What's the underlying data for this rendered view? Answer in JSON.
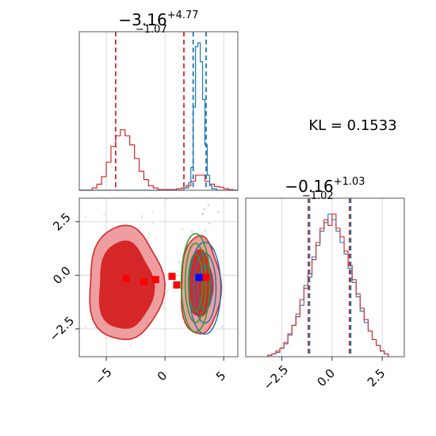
{
  "kl_label": "KL = 0.1533",
  "colors": {
    "red": "#d62728",
    "red_fill_light": "#ee9ea0",
    "red_fill_dark": "#d62728",
    "blue": "#1f77b4",
    "green": "#2ca02c",
    "marker_red": "#ff0000",
    "marker_blue": "#0000ff"
  },
  "chart_data": [
    {
      "panel": "top-left",
      "type": "histogram",
      "title": {
        "median": "−3.16",
        "plus": "+4.77",
        "minus": "−1.07"
      },
      "xlim": [
        -7.3,
        6.2
      ],
      "grid": true,
      "series": [
        {
          "color": "red",
          "bins": [
            -6.2,
            -5.8,
            -5.4,
            -5.0,
            -4.6,
            -4.2,
            -3.8,
            -3.4,
            -3.0,
            -2.6,
            -2.2,
            -1.8,
            -1.4,
            -1.0,
            -0.6,
            -0.2,
            0.2,
            0.6,
            1.0,
            1.4,
            1.8,
            2.2,
            2.6,
            3.0,
            3.4,
            3.8,
            4.2,
            4.6,
            5.0,
            5.4
          ],
          "counts": [
            3,
            8,
            18,
            37,
            58,
            72,
            80,
            72,
            60,
            42,
            25,
            14,
            6,
            3,
            1,
            1,
            1,
            1,
            2,
            3,
            6,
            12,
            20,
            20,
            12,
            8,
            5,
            4,
            2,
            1
          ]
        },
        {
          "color": "blue",
          "bins": [
            1.6,
            2.0,
            2.2,
            2.4,
            2.6,
            2.8,
            3.0,
            3.2,
            3.4,
            3.6,
            3.8,
            4.0
          ],
          "counts": [
            3,
            10,
            30,
            110,
            190,
            195,
            170,
            120,
            60,
            20,
            6,
            2
          ]
        }
      ],
      "vlines": [
        {
          "color": "red",
          "values": [
            -4.2,
            1.61
          ]
        },
        {
          "color": "blue",
          "values": [
            2.4,
            3.5
          ]
        }
      ],
      "xticks": [
        -5,
        0,
        5
      ]
    },
    {
      "panel": "bottom-left",
      "type": "contour",
      "xlim": [
        -7.3,
        6.2
      ],
      "ylim": [
        -3.8,
        3.6
      ],
      "xticks": [
        -5,
        0,
        5
      ],
      "xticklabels": [
        "−5",
        "0",
        "5"
      ],
      "yticks": [
        2.5,
        0.0,
        -2.5
      ],
      "yticklabels": [
        "2.5",
        "0.0",
        "−2.5"
      ],
      "grid": true,
      "red_markers": [
        {
          "x": -3.3,
          "y": -0.15
        },
        {
          "x": -1.8,
          "y": -0.3
        },
        {
          "x": -0.8,
          "y": -0.2
        },
        {
          "x": 0.6,
          "y": -0.05
        },
        {
          "x": 1.0,
          "y": -0.45
        },
        {
          "x": 3.5,
          "y": -0.1
        }
      ],
      "blue_marker": {
        "x": 2.9,
        "y": -0.1
      }
    },
    {
      "panel": "bottom-right",
      "type": "histogram",
      "title": {
        "median": "−0.16",
        "plus": "+1.03",
        "minus": "−1.02"
      },
      "xlim": [
        -4.3,
        3.6
      ],
      "xticks": [
        -2.5,
        0.0,
        2.5
      ],
      "xticklabels": [
        "−2.5",
        "0.0",
        "2.5"
      ],
      "grid": true,
      "series": [
        {
          "color": "red",
          "bins": [
            -3.2,
            -3.0,
            -2.8,
            -2.6,
            -2.4,
            -2.2,
            -2.0,
            -1.8,
            -1.6,
            -1.4,
            -1.2,
            -1.0,
            -0.8,
            -0.6,
            -0.4,
            -0.2,
            0.0,
            0.2,
            0.4,
            0.6,
            0.8,
            1.0,
            1.2,
            1.4,
            1.6,
            1.8,
            2.0,
            2.2,
            2.4,
            2.6
          ],
          "counts": [
            1,
            2,
            4,
            6,
            10,
            16,
            22,
            28,
            40,
            48,
            58,
            68,
            80,
            90,
            96,
            92,
            100,
            90,
            84,
            74,
            64,
            54,
            44,
            34,
            26,
            18,
            12,
            8,
            4,
            2
          ]
        },
        {
          "color": "blue",
          "bins": [
            -3.2,
            -3.0,
            -2.8,
            -2.6,
            -2.4,
            -2.2,
            -2.0,
            -1.8,
            -1.6,
            -1.4,
            -1.2,
            -1.0,
            -0.8,
            -0.6,
            -0.4,
            -0.2,
            0.0,
            0.2,
            0.4,
            0.6,
            0.8,
            1.0,
            1.2,
            1.4,
            1.6,
            1.8,
            2.0,
            2.2,
            2.4,
            2.6
          ],
          "counts": [
            1,
            2,
            3,
            6,
            9,
            15,
            22,
            30,
            36,
            50,
            56,
            70,
            78,
            88,
            94,
            100,
            96,
            88,
            80,
            72,
            62,
            52,
            42,
            32,
            24,
            18,
            12,
            8,
            4,
            2
          ]
        }
      ],
      "vlines": [
        {
          "color": "red",
          "values": [
            -1.18,
            0.87
          ]
        },
        {
          "color": "blue",
          "values": [
            -1.18,
            0.87
          ]
        }
      ]
    }
  ]
}
